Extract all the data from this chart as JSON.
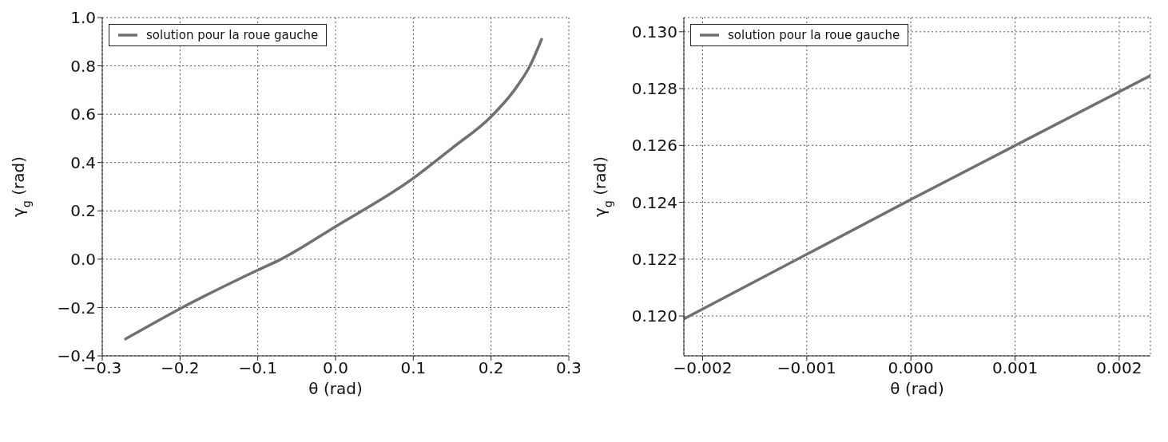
{
  "chart_data": [
    {
      "type": "line",
      "xlabel": "θ (rad)",
      "ylabel": "γ$_{g}$ (rad)",
      "xlim": [
        -0.3,
        0.3
      ],
      "ylim": [
        -0.4,
        1.0
      ],
      "xticks": [
        {
          "value": -0.3,
          "label": "−0.3"
        },
        {
          "value": -0.2,
          "label": "−0.2"
        },
        {
          "value": -0.1,
          "label": "−0.1"
        },
        {
          "value": 0,
          "label": "0.0"
        },
        {
          "value": 0.1,
          "label": "0.1"
        },
        {
          "value": 0.2,
          "label": "0.2"
        },
        {
          "value": 0.3,
          "label": "0.3"
        }
      ],
      "yticks": [
        {
          "value": -0.4,
          "label": "−0.4"
        },
        {
          "value": -0.2,
          "label": "−0.2"
        },
        {
          "value": 0,
          "label": "0.0"
        },
        {
          "value": 0.2,
          "label": "0.2"
        },
        {
          "value": 0.4,
          "label": "0.4"
        },
        {
          "value": 0.6,
          "label": "0.6"
        },
        {
          "value": 0.8,
          "label": "0.8"
        },
        {
          "value": 1.0,
          "label": "1.0"
        }
      ],
      "grid": true,
      "legend": "top left",
      "marker": "none",
      "line_style": "solid",
      "series": [
        {
          "name": "solution pour la roue gauche",
          "color": "#707070",
          "x": [
            -0.27,
            -0.2,
            -0.1,
            -0.07,
            0,
            0.1,
            0.15,
            0.2,
            0.23,
            0.25,
            0.265
          ],
          "values": [
            -0.33,
            -0.205,
            -0.045,
            0,
            0.135,
            0.335,
            0.46,
            0.59,
            0.7,
            0.8,
            0.91
          ]
        }
      ]
    },
    {
      "type": "line",
      "xlabel": "θ (rad)",
      "ylabel": "γ$_{g}$ (rad)",
      "xlim": [
        -0.00218,
        0.0023
      ],
      "ylim": [
        0.1186,
        0.1305
      ],
      "xticks": [
        {
          "value": -0.002,
          "label": "−0.002"
        },
        {
          "value": -0.001,
          "label": "−0.001"
        },
        {
          "value": 0,
          "label": "0.000"
        },
        {
          "value": 0.001,
          "label": "0.001"
        },
        {
          "value": 0.002,
          "label": "0.002"
        }
      ],
      "yticks": [
        {
          "value": 0.12,
          "label": "0.120"
        },
        {
          "value": 0.122,
          "label": "0.122"
        },
        {
          "value": 0.124,
          "label": "0.124"
        },
        {
          "value": 0.126,
          "label": "0.126"
        },
        {
          "value": 0.128,
          "label": "0.128"
        },
        {
          "value": 0.13,
          "label": "0.130"
        }
      ],
      "grid": true,
      "legend": "top left",
      "marker": "none",
      "line_style": "solid",
      "series": [
        {
          "name": "solution pour la roue gauche",
          "color": "#707070",
          "x": [
            -0.00218,
            0,
            0.0023
          ],
          "values": [
            0.1199,
            0.1241,
            0.12846
          ]
        }
      ]
    }
  ]
}
